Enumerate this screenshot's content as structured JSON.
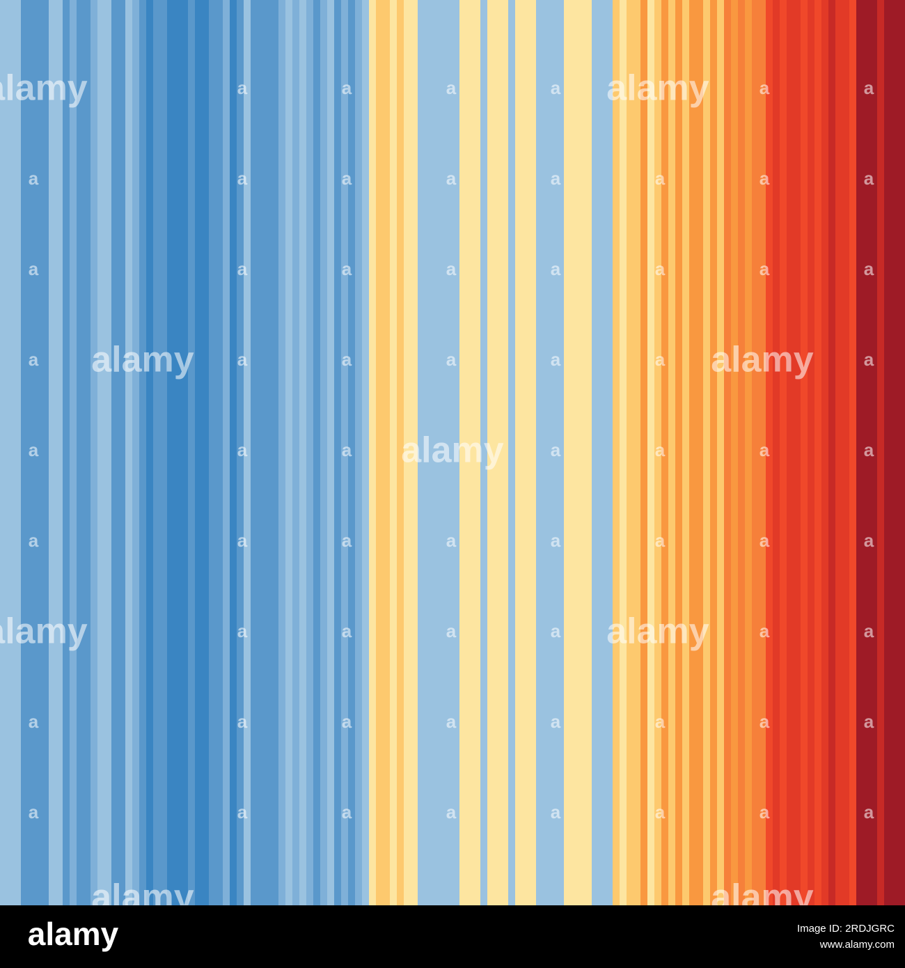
{
  "stripes": {
    "colors": {
      "A": "#9ac2e0",
      "B": "#5a98cb",
      "C": "#3a85c2",
      "D": "#7fb0d8",
      "Y": "#fde5a0",
      "O1": "#fdc96e",
      "O2": "#f99840",
      "O3": "#f6803a",
      "R1": "#f0482a",
      "R2": "#e23a27",
      "R3": "#c72a26",
      "DR": "#9e1b26"
    },
    "sequence": [
      "A",
      "A",
      "A",
      "B",
      "B",
      "B",
      "B",
      "A",
      "A",
      "B",
      "D",
      "B",
      "B",
      "D",
      "A",
      "A",
      "B",
      "B",
      "A",
      "D",
      "B",
      "C",
      "B",
      "B",
      "C",
      "C",
      "C",
      "B",
      "C",
      "C",
      "B",
      "B",
      "D",
      "C",
      "B",
      "A",
      "B",
      "B",
      "B",
      "B",
      "D",
      "A",
      "D",
      "A",
      "D",
      "B",
      "D",
      "A",
      "B",
      "D",
      "B",
      "D",
      "A",
      "Y",
      "O1",
      "O1",
      "Y",
      "O1",
      "Y",
      "Y",
      "A",
      "A",
      "A",
      "A",
      "A",
      "A",
      "Y",
      "Y",
      "Y",
      "A",
      "Y",
      "Y",
      "Y",
      "A",
      "Y",
      "Y",
      "Y",
      "A",
      "A",
      "A",
      "A",
      "Y",
      "Y",
      "Y",
      "Y",
      "A",
      "A",
      "A",
      "O1",
      "Y",
      "O1",
      "O1",
      "O2",
      "Y",
      "O1",
      "O2",
      "O1",
      "O2",
      "O1",
      "O2",
      "O2",
      "O1",
      "O2",
      "O1",
      "O3",
      "O2",
      "O3",
      "O2",
      "O3",
      "O3",
      "R1",
      "R2",
      "R1",
      "R2",
      "R2",
      "R1",
      "R2",
      "R1",
      "R2",
      "R3",
      "R2",
      "R2",
      "R1",
      "DR",
      "DR",
      "DR",
      "R3",
      "DR",
      "DR",
      "DR"
    ]
  },
  "watermark": {
    "logo": "alamy",
    "mark": "a"
  },
  "footer": {
    "logo": "alamy",
    "image_id": "Image ID: 2RDJGRC",
    "url": "www.alamy.com"
  }
}
